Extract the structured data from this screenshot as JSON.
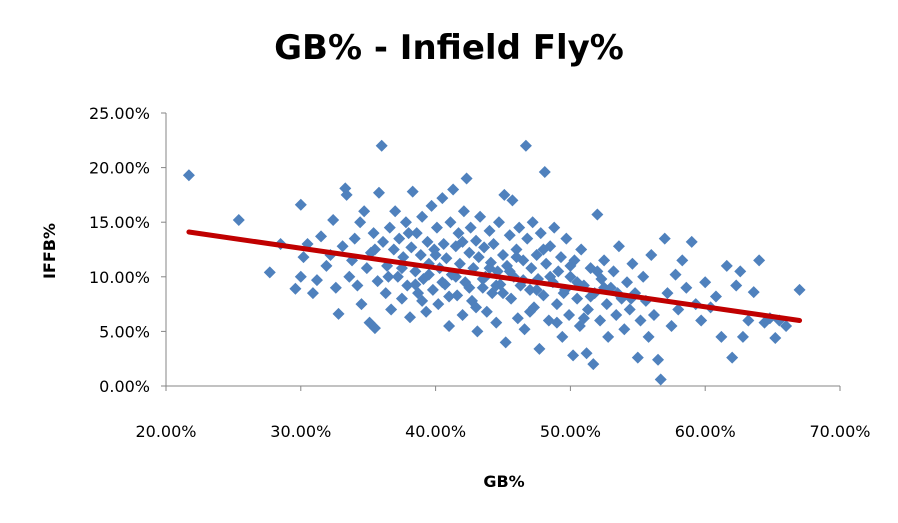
{
  "chart_data": {
    "type": "scatter",
    "title": "GB% - Infield Fly%",
    "xlabel": "GB%",
    "ylabel": "IFFB%",
    "xlim": [
      0.2,
      0.7
    ],
    "ylim": [
      0.0,
      0.25
    ],
    "x_ticks": [
      "20.00%",
      "30.00%",
      "40.00%",
      "50.00%",
      "60.00%",
      "70.00%"
    ],
    "y_ticks": [
      "0.00%",
      "5.00%",
      "10.00%",
      "15.00%",
      "20.00%",
      "25.00%"
    ],
    "grid": false,
    "legend": "none",
    "colors": {
      "points": "#4f81bd",
      "trendline": "#c00000"
    },
    "trendline": {
      "x": [
        0.217,
        0.67
      ],
      "y": [
        0.141,
        0.06
      ]
    },
    "points": [
      [
        0.217,
        0.193
      ],
      [
        0.254,
        0.152
      ],
      [
        0.277,
        0.104
      ],
      [
        0.285,
        0.13
      ],
      [
        0.296,
        0.089
      ],
      [
        0.3,
        0.166
      ],
      [
        0.3,
        0.1
      ],
      [
        0.302,
        0.118
      ],
      [
        0.305,
        0.13
      ],
      [
        0.309,
        0.085
      ],
      [
        0.312,
        0.097
      ],
      [
        0.315,
        0.137
      ],
      [
        0.319,
        0.11
      ],
      [
        0.322,
        0.12
      ],
      [
        0.324,
        0.152
      ],
      [
        0.326,
        0.09
      ],
      [
        0.328,
        0.066
      ],
      [
        0.331,
        0.128
      ],
      [
        0.333,
        0.181
      ],
      [
        0.334,
        0.175
      ],
      [
        0.336,
        0.1
      ],
      [
        0.338,
        0.115
      ],
      [
        0.34,
        0.135
      ],
      [
        0.342,
        0.092
      ],
      [
        0.344,
        0.15
      ],
      [
        0.345,
        0.075
      ],
      [
        0.347,
        0.16
      ],
      [
        0.349,
        0.108
      ],
      [
        0.351,
        0.058
      ],
      [
        0.352,
        0.122
      ],
      [
        0.354,
        0.14
      ],
      [
        0.355,
        0.053
      ],
      [
        0.357,
        0.096
      ],
      [
        0.358,
        0.177
      ],
      [
        0.36,
        0.22
      ],
      [
        0.361,
        0.132
      ],
      [
        0.363,
        0.085
      ],
      [
        0.364,
        0.11
      ],
      [
        0.366,
        0.145
      ],
      [
        0.367,
        0.07
      ],
      [
        0.369,
        0.125
      ],
      [
        0.37,
        0.16
      ],
      [
        0.372,
        0.1
      ],
      [
        0.373,
        0.135
      ],
      [
        0.375,
        0.08
      ],
      [
        0.376,
        0.118
      ],
      [
        0.378,
        0.15
      ],
      [
        0.379,
        0.092
      ],
      [
        0.381,
        0.063
      ],
      [
        0.382,
        0.127
      ],
      [
        0.383,
        0.178
      ],
      [
        0.385,
        0.105
      ],
      [
        0.386,
        0.14
      ],
      [
        0.387,
        0.085
      ],
      [
        0.389,
        0.12
      ],
      [
        0.39,
        0.155
      ],
      [
        0.391,
        0.098
      ],
      [
        0.393,
        0.068
      ],
      [
        0.394,
        0.132
      ],
      [
        0.395,
        0.112
      ],
      [
        0.397,
        0.165
      ],
      [
        0.398,
        0.088
      ],
      [
        0.399,
        0.125
      ],
      [
        0.401,
        0.145
      ],
      [
        0.402,
        0.075
      ],
      [
        0.403,
        0.108
      ],
      [
        0.405,
        0.172
      ],
      [
        0.406,
        0.13
      ],
      [
        0.407,
        0.093
      ],
      [
        0.408,
        0.117
      ],
      [
        0.41,
        0.055
      ],
      [
        0.411,
        0.15
      ],
      [
        0.412,
        0.102
      ],
      [
        0.413,
        0.18
      ],
      [
        0.415,
        0.128
      ],
      [
        0.416,
        0.083
      ],
      [
        0.417,
        0.14
      ],
      [
        0.418,
        0.112
      ],
      [
        0.42,
        0.065
      ],
      [
        0.421,
        0.16
      ],
      [
        0.422,
        0.095
      ],
      [
        0.423,
        0.19
      ],
      [
        0.425,
        0.122
      ],
      [
        0.426,
        0.145
      ],
      [
        0.427,
        0.078
      ],
      [
        0.428,
        0.108
      ],
      [
        0.43,
        0.133
      ],
      [
        0.431,
        0.05
      ],
      [
        0.432,
        0.118
      ],
      [
        0.433,
        0.155
      ],
      [
        0.435,
        0.09
      ],
      [
        0.436,
        0.127
      ],
      [
        0.437,
        0.1
      ],
      [
        0.438,
        0.068
      ],
      [
        0.44,
        0.142
      ],
      [
        0.441,
        0.113
      ],
      [
        0.442,
        0.085
      ],
      [
        0.443,
        0.13
      ],
      [
        0.445,
        0.058
      ],
      [
        0.446,
        0.105
      ],
      [
        0.447,
        0.15
      ],
      [
        0.448,
        0.093
      ],
      [
        0.45,
        0.12
      ],
      [
        0.451,
        0.175
      ],
      [
        0.452,
        0.04
      ],
      [
        0.453,
        0.11
      ],
      [
        0.455,
        0.138
      ],
      [
        0.456,
        0.08
      ],
      [
        0.457,
        0.17
      ],
      [
        0.458,
        0.1
      ],
      [
        0.46,
        0.125
      ],
      [
        0.461,
        0.062
      ],
      [
        0.462,
        0.145
      ],
      [
        0.463,
        0.092
      ],
      [
        0.465,
        0.115
      ],
      [
        0.466,
        0.052
      ],
      [
        0.467,
        0.22
      ],
      [
        0.468,
        0.135
      ],
      [
        0.47,
        0.088
      ],
      [
        0.471,
        0.108
      ],
      [
        0.472,
        0.15
      ],
      [
        0.473,
        0.072
      ],
      [
        0.475,
        0.12
      ],
      [
        0.476,
        0.098
      ],
      [
        0.477,
        0.034
      ],
      [
        0.478,
        0.14
      ],
      [
        0.48,
        0.083
      ],
      [
        0.481,
        0.196
      ],
      [
        0.482,
        0.112
      ],
      [
        0.484,
        0.06
      ],
      [
        0.485,
        0.128
      ],
      [
        0.487,
        0.095
      ],
      [
        0.488,
        0.145
      ],
      [
        0.49,
        0.075
      ],
      [
        0.491,
        0.105
      ],
      [
        0.493,
        0.118
      ],
      [
        0.494,
        0.045
      ],
      [
        0.496,
        0.088
      ],
      [
        0.497,
        0.135
      ],
      [
        0.499,
        0.065
      ],
      [
        0.5,
        0.1
      ],
      [
        0.502,
        0.028
      ],
      [
        0.503,
        0.115
      ],
      [
        0.505,
        0.08
      ],
      [
        0.507,
        0.055
      ],
      [
        0.508,
        0.125
      ],
      [
        0.51,
        0.092
      ],
      [
        0.512,
        0.03
      ],
      [
        0.513,
        0.07
      ],
      [
        0.515,
        0.108
      ],
      [
        0.517,
        0.02
      ],
      [
        0.518,
        0.085
      ],
      [
        0.52,
        0.157
      ],
      [
        0.522,
        0.06
      ],
      [
        0.523,
        0.098
      ],
      [
        0.525,
        0.115
      ],
      [
        0.527,
        0.075
      ],
      [
        0.528,
        0.045
      ],
      [
        0.53,
        0.09
      ],
      [
        0.532,
        0.105
      ],
      [
        0.534,
        0.065
      ],
      [
        0.536,
        0.128
      ],
      [
        0.538,
        0.08
      ],
      [
        0.54,
        0.052
      ],
      [
        0.542,
        0.095
      ],
      [
        0.544,
        0.07
      ],
      [
        0.546,
        0.112
      ],
      [
        0.548,
        0.085
      ],
      [
        0.55,
        0.026
      ],
      [
        0.552,
        0.06
      ],
      [
        0.554,
        0.1
      ],
      [
        0.556,
        0.078
      ],
      [
        0.558,
        0.045
      ],
      [
        0.56,
        0.12
      ],
      [
        0.562,
        0.065
      ],
      [
        0.565,
        0.024
      ],
      [
        0.567,
        0.006
      ],
      [
        0.57,
        0.135
      ],
      [
        0.572,
        0.085
      ],
      [
        0.575,
        0.055
      ],
      [
        0.578,
        0.102
      ],
      [
        0.58,
        0.07
      ],
      [
        0.583,
        0.115
      ],
      [
        0.586,
        0.09
      ],
      [
        0.59,
        0.132
      ],
      [
        0.593,
        0.075
      ],
      [
        0.597,
        0.06
      ],
      [
        0.6,
        0.095
      ],
      [
        0.604,
        0.072
      ],
      [
        0.608,
        0.082
      ],
      [
        0.612,
        0.045
      ],
      [
        0.616,
        0.11
      ],
      [
        0.62,
        0.026
      ],
      [
        0.623,
        0.092
      ],
      [
        0.626,
        0.105
      ],
      [
        0.628,
        0.045
      ],
      [
        0.632,
        0.06
      ],
      [
        0.636,
        0.086
      ],
      [
        0.64,
        0.115
      ],
      [
        0.644,
        0.058
      ],
      [
        0.648,
        0.062
      ],
      [
        0.652,
        0.044
      ],
      [
        0.655,
        0.06
      ],
      [
        0.66,
        0.055
      ],
      [
        0.67,
        0.088
      ],
      [
        0.355,
        0.125
      ],
      [
        0.365,
        0.1
      ],
      [
        0.375,
        0.108
      ],
      [
        0.385,
        0.093
      ],
      [
        0.395,
        0.102
      ],
      [
        0.405,
        0.095
      ],
      [
        0.415,
        0.1
      ],
      [
        0.425,
        0.09
      ],
      [
        0.435,
        0.098
      ],
      [
        0.445,
        0.092
      ],
      [
        0.455,
        0.105
      ],
      [
        0.465,
        0.097
      ],
      [
        0.475,
        0.088
      ],
      [
        0.485,
        0.1
      ],
      [
        0.495,
        0.085
      ],
      [
        0.505,
        0.095
      ],
      [
        0.515,
        0.082
      ],
      [
        0.525,
        0.09
      ],
      [
        0.535,
        0.085
      ],
      [
        0.545,
        0.08
      ],
      [
        0.38,
        0.14
      ],
      [
        0.4,
        0.12
      ],
      [
        0.42,
        0.132
      ],
      [
        0.44,
        0.108
      ],
      [
        0.46,
        0.118
      ],
      [
        0.48,
        0.125
      ],
      [
        0.5,
        0.11
      ],
      [
        0.52,
        0.105
      ],
      [
        0.39,
        0.078
      ],
      [
        0.41,
        0.082
      ],
      [
        0.43,
        0.072
      ],
      [
        0.45,
        0.085
      ],
      [
        0.47,
        0.068
      ],
      [
        0.49,
        0.058
      ],
      [
        0.51,
        0.062
      ]
    ]
  }
}
